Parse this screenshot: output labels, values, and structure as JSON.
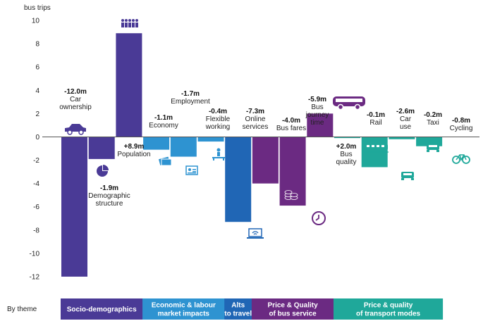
{
  "chart_data": {
    "type": "bar",
    "ylabel": "bus trips",
    "ylim": [
      -12,
      10
    ],
    "yticks": [
      10,
      8,
      6,
      4,
      2,
      0,
      -2,
      -4,
      -6,
      -8,
      -10,
      -12
    ],
    "grid": false,
    "bars": [
      {
        "value_label": "-12.0m",
        "name_lines": [
          "Car",
          "ownership"
        ],
        "value": -12.0,
        "color": "#4a3a96",
        "icon": "car-icon"
      },
      {
        "value_label": "-1.9m",
        "name_lines": [
          "Demographic",
          "structure"
        ],
        "value": -1.9,
        "color": "#4a3a96",
        "icon": "pie-chart-icon"
      },
      {
        "value_label": "+8.9m",
        "name_lines": [
          "Population"
        ],
        "value": 8.9,
        "color": "#4a3a96",
        "icon": "people-icon"
      },
      {
        "value_label": "-1.1m",
        "name_lines": [
          "Economy"
        ],
        "value": -1.1,
        "color": "#2e93d1",
        "icon": "money-icon"
      },
      {
        "value_label": "-1.7m",
        "name_lines": [
          "Employment"
        ],
        "value": -1.7,
        "color": "#2e93d1",
        "icon": "id-badge-icon"
      },
      {
        "value_label": "-0.4m",
        "name_lines": [
          "Flexible",
          "working"
        ],
        "value": -0.4,
        "color": "#2e93d1",
        "icon": "person-desk-icon"
      },
      {
        "value_label": "-7.3m",
        "name_lines": [
          "Online",
          "services"
        ],
        "value": -7.3,
        "color": "#2066b5",
        "icon": "laptop-wifi-icon"
      },
      {
        "value_label": "-4.0m",
        "name_lines": [
          "Bus fares"
        ],
        "value": -4.0,
        "color": "#6b2a82",
        "icon": "coins-icon"
      },
      {
        "value_label": "-5.9m",
        "name_lines": [
          "Bus",
          "journey",
          "time"
        ],
        "value": -5.9,
        "color": "#6b2a82",
        "icon": "clock-icon"
      },
      {
        "value_label": "+2.0m",
        "name_lines": [
          "Bus",
          "quality"
        ],
        "value": 2.0,
        "color": "#6b2a82",
        "icon": "bus-icon"
      },
      {
        "value_label": "-0.1m",
        "name_lines": [
          "Rail"
        ],
        "value": -0.1,
        "color": "#1fa89a",
        "icon": "train-icon"
      },
      {
        "value_label": "-2.6m",
        "name_lines": [
          "Car",
          "use"
        ],
        "value": -2.6,
        "color": "#1fa89a",
        "icon": "car-front-icon"
      },
      {
        "value_label": "-0.2m",
        "name_lines": [
          "Taxi"
        ],
        "value": -0.2,
        "color": "#1fa89a",
        "icon": "taxi-icon"
      },
      {
        "value_label": "-0.8m",
        "name_lines": [
          "Cycling"
        ],
        "value": -0.8,
        "color": "#1fa89a",
        "icon": "bicycle-icon"
      }
    ],
    "themes_label": "By theme",
    "themes": [
      {
        "lines": [
          "Socio-demographics"
        ],
        "color": "#4a3a96",
        "bars": [
          0,
          2
        ]
      },
      {
        "lines": [
          "Economic & labour",
          "market impacts"
        ],
        "color": "#2e93d1",
        "bars": [
          3,
          5
        ]
      },
      {
        "lines": [
          "Alts",
          "to travel"
        ],
        "color": "#2066b5",
        "bars": [
          6,
          6
        ]
      },
      {
        "lines": [
          "Price & Quality",
          "of bus service"
        ],
        "color": "#6b2a82",
        "bars": [
          7,
          9
        ]
      },
      {
        "lines": [
          "Price & quality",
          "of transport modes"
        ],
        "color": "#1fa89a",
        "bars": [
          10,
          13
        ]
      }
    ]
  }
}
